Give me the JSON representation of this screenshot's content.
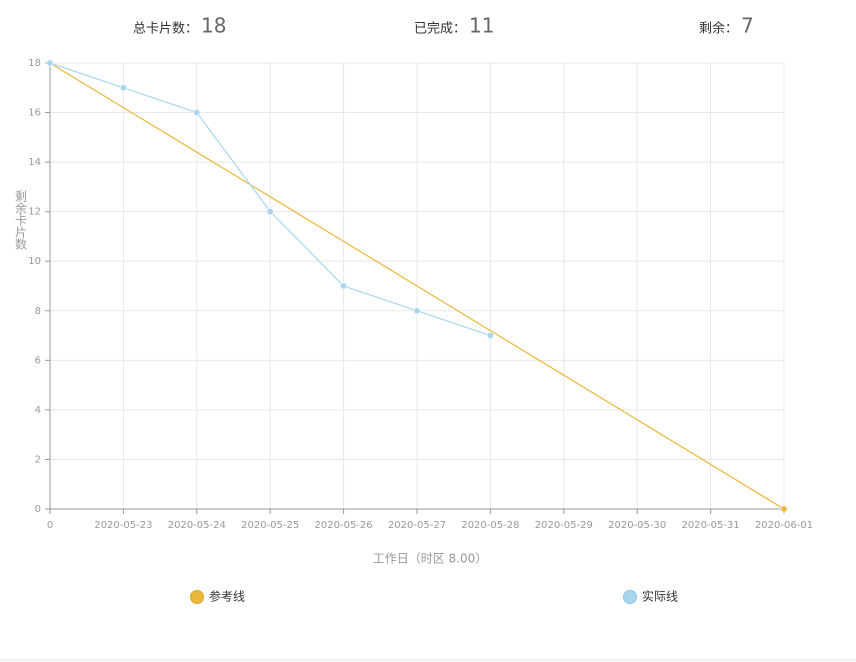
{
  "summary": [
    {
      "label": "总卡片数：",
      "value": 18
    },
    {
      "label": "已完成：",
      "value": 11
    },
    {
      "label": "剩余：",
      "value": 7
    }
  ],
  "chart_data": {
    "type": "line",
    "categories": [
      "0",
      "2020-05-23",
      "2020-05-24",
      "2020-05-25",
      "2020-05-26",
      "2020-05-27",
      "2020-05-28",
      "2020-05-29",
      "2020-05-30",
      "2020-05-31",
      "2020-06-01"
    ],
    "series": [
      {
        "name": "参考线",
        "color": "#e9b93b",
        "values": [
          18,
          16.2,
          14.4,
          12.6,
          10.8,
          9,
          7.2,
          5.4,
          3.6,
          1.8,
          0
        ]
      },
      {
        "name": "实际线",
        "color": "#a9d6ef",
        "values": [
          18,
          17,
          16,
          12,
          9,
          8,
          7,
          null,
          null,
          null,
          null
        ]
      }
    ],
    "ylim": [
      0,
      18
    ],
    "yticks": [
      0,
      2,
      4,
      6,
      8,
      10,
      12,
      14,
      16,
      18
    ],
    "y_label": "剩余卡片数",
    "x_label": "工作日（时区 8.00）",
    "grid": true
  }
}
